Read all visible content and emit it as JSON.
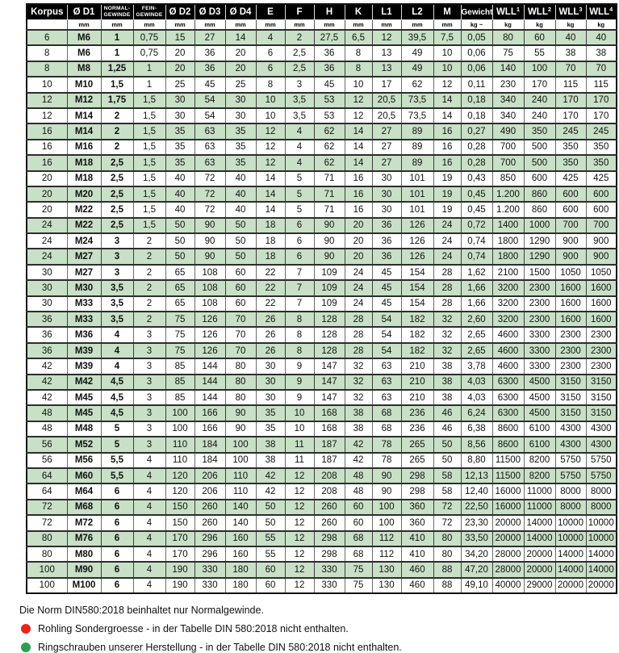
{
  "colors": {
    "row_highlight_green": "#c8e0c6",
    "header_bg": "#000000",
    "dot_red": "#e8231a",
    "dot_green": "#2e9e53"
  },
  "table": {
    "columns": [
      {
        "label": "Korpus",
        "unit": ""
      },
      {
        "label": "Ø D1",
        "unit": "mm"
      },
      {
        "lines": [
          "NORMAL-",
          "GEWINDE"
        ],
        "unit": "mm"
      },
      {
        "lines": [
          "FEIN-",
          "GEWINDE"
        ],
        "unit": "mm"
      },
      {
        "label": "Ø D2",
        "unit": "mm"
      },
      {
        "label": "Ø D3",
        "unit": "mm"
      },
      {
        "label": "Ø D4",
        "unit": "mm"
      },
      {
        "label": "E",
        "unit": "mm"
      },
      {
        "label": "F",
        "unit": "mm"
      },
      {
        "label": "H",
        "unit": "mm"
      },
      {
        "label": "K",
        "unit": "mm"
      },
      {
        "label": "L1",
        "unit": "mm"
      },
      {
        "label": "L2",
        "unit": "mm"
      },
      {
        "label": "M",
        "unit": "mm"
      },
      {
        "label": "Gewicht",
        "unit": "kg ~"
      },
      {
        "label": "WLL",
        "sup": "1",
        "unit": "kg"
      },
      {
        "label": "WLL",
        "sup": "2",
        "unit": "kg"
      },
      {
        "label": "WLL",
        "sup": "3",
        "unit": "kg"
      },
      {
        "label": "WLL",
        "sup": "4",
        "unit": "kg"
      }
    ],
    "rows": [
      {
        "dot": "red",
        "cells": [
          "6",
          "M6",
          "1",
          "0,75",
          "15",
          "27",
          "14",
          "4",
          "2",
          "27,5",
          "6,5",
          "12",
          "39,5",
          "7,5",
          "0,05",
          "80",
          "60",
          "40",
          "40"
        ]
      },
      {
        "cells": [
          "8",
          "M6",
          "1",
          "0,75",
          "20",
          "36",
          "20",
          "6",
          "2,5",
          "36",
          "8",
          "13",
          "49",
          "10",
          "0,06",
          "75",
          "55",
          "38",
          "38"
        ]
      },
      {
        "cells": [
          "8",
          "M8",
          "1,25",
          "1",
          "20",
          "36",
          "20",
          "6",
          "2,5",
          "36",
          "8",
          "13",
          "49",
          "10",
          "0,06",
          "140",
          "100",
          "70",
          "70"
        ]
      },
      {
        "cells": [
          "10",
          "M10",
          "1,5",
          "1",
          "25",
          "45",
          "25",
          "8",
          "3",
          "45",
          "10",
          "17",
          "62",
          "12",
          "0,11",
          "230",
          "170",
          "115",
          "115"
        ]
      },
      {
        "cells": [
          "12",
          "M12",
          "1,75",
          "1,5",
          "30",
          "54",
          "30",
          "10",
          "3,5",
          "53",
          "12",
          "20,5",
          "73,5",
          "14",
          "0,18",
          "340",
          "240",
          "170",
          "170"
        ]
      },
      {
        "dot": "green",
        "cells": [
          "12",
          "M14",
          "2",
          "1,5",
          "30",
          "54",
          "30",
          "10",
          "3,5",
          "53",
          "12",
          "20,5",
          "73,5",
          "14",
          "0,18",
          "340",
          "240",
          "170",
          "170"
        ]
      },
      {
        "cells": [
          "16",
          "M14",
          "2",
          "1,5",
          "35",
          "63",
          "35",
          "12",
          "4",
          "62",
          "14",
          "27",
          "89",
          "16",
          "0,27",
          "490",
          "350",
          "245",
          "245"
        ]
      },
      {
        "cells": [
          "16",
          "M16",
          "2",
          "1,5",
          "35",
          "63",
          "35",
          "12",
          "4",
          "62",
          "14",
          "27",
          "89",
          "16",
          "0,28",
          "700",
          "500",
          "350",
          "350"
        ]
      },
      {
        "dot": "green",
        "cells": [
          "16",
          "M18",
          "2,5",
          "1,5",
          "35",
          "63",
          "35",
          "12",
          "4",
          "62",
          "14",
          "27",
          "89",
          "16",
          "0,28",
          "700",
          "500",
          "350",
          "350"
        ]
      },
      {
        "cells": [
          "20",
          "M18",
          "2,5",
          "1,5",
          "40",
          "72",
          "40",
          "14",
          "5",
          "71",
          "16",
          "30",
          "101",
          "19",
          "0,43",
          "850",
          "600",
          "425",
          "425"
        ]
      },
      {
        "cells": [
          "20",
          "M20",
          "2,5",
          "1,5",
          "40",
          "72",
          "40",
          "14",
          "5",
          "71",
          "16",
          "30",
          "101",
          "19",
          "0,45",
          "1.200",
          "860",
          "600",
          "600"
        ]
      },
      {
        "dot": "green",
        "cells": [
          "20",
          "M22",
          "2,5",
          "1,5",
          "40",
          "72",
          "40",
          "14",
          "5",
          "71",
          "16",
          "30",
          "101",
          "19",
          "0,45",
          "1.200",
          "860",
          "600",
          "600"
        ]
      },
      {
        "cells": [
          "24",
          "M22",
          "2,5",
          "1,5",
          "50",
          "90",
          "50",
          "18",
          "6",
          "90",
          "20",
          "36",
          "126",
          "24",
          "0,72",
          "1400",
          "1000",
          "700",
          "700"
        ]
      },
      {
        "cells": [
          "24",
          "M24",
          "3",
          "2",
          "50",
          "90",
          "50",
          "18",
          "6",
          "90",
          "20",
          "36",
          "126",
          "24",
          "0,74",
          "1800",
          "1290",
          "900",
          "900"
        ]
      },
      {
        "dot": "green",
        "cells": [
          "24",
          "M27",
          "3",
          "2",
          "50",
          "90",
          "50",
          "18",
          "6",
          "90",
          "20",
          "36",
          "126",
          "24",
          "0,74",
          "1800",
          "1290",
          "900",
          "900"
        ]
      },
      {
        "cells": [
          "30",
          "M27",
          "3",
          "2",
          "65",
          "108",
          "60",
          "22",
          "7",
          "109",
          "24",
          "45",
          "154",
          "28",
          "1,62",
          "2100",
          "1500",
          "1050",
          "1050"
        ]
      },
      {
        "cells": [
          "30",
          "M30",
          "3,5",
          "2",
          "65",
          "108",
          "60",
          "22",
          "7",
          "109",
          "24",
          "45",
          "154",
          "28",
          "1,66",
          "3200",
          "2300",
          "1600",
          "1600"
        ]
      },
      {
        "dot": "green",
        "cells": [
          "30",
          "M33",
          "3,5",
          "2",
          "65",
          "108",
          "60",
          "22",
          "7",
          "109",
          "24",
          "45",
          "154",
          "28",
          "1,66",
          "3200",
          "2300",
          "1600",
          "1600"
        ]
      },
      {
        "cells": [
          "36",
          "M33",
          "3,5",
          "2",
          "75",
          "126",
          "70",
          "26",
          "8",
          "128",
          "28",
          "54",
          "182",
          "32",
          "2,60",
          "3200",
          "2300",
          "1600",
          "1600"
        ]
      },
      {
        "cells": [
          "36",
          "M36",
          "4",
          "3",
          "75",
          "126",
          "70",
          "26",
          "8",
          "128",
          "28",
          "54",
          "182",
          "32",
          "2,65",
          "4600",
          "3300",
          "2300",
          "2300"
        ]
      },
      {
        "dot": "green",
        "cells": [
          "36",
          "M39",
          "4",
          "3",
          "75",
          "126",
          "70",
          "26",
          "8",
          "128",
          "28",
          "54",
          "182",
          "32",
          "2,65",
          "4600",
          "3300",
          "2300",
          "2300"
        ]
      },
      {
        "cells": [
          "42",
          "M39",
          "4",
          "3",
          "85",
          "144",
          "80",
          "30",
          "9",
          "147",
          "32",
          "63",
          "210",
          "38",
          "3,78",
          "4600",
          "3300",
          "2300",
          "2300"
        ]
      },
      {
        "cells": [
          "42",
          "M42",
          "4,5",
          "3",
          "85",
          "144",
          "80",
          "30",
          "9",
          "147",
          "32",
          "63",
          "210",
          "38",
          "4,03",
          "6300",
          "4500",
          "3150",
          "3150"
        ]
      },
      {
        "dot": "green",
        "cells": [
          "42",
          "M45",
          "4,5",
          "3",
          "85",
          "144",
          "80",
          "30",
          "9",
          "147",
          "32",
          "63",
          "210",
          "38",
          "4,03",
          "6300",
          "4500",
          "3150",
          "3150"
        ]
      },
      {
        "cells": [
          "48",
          "M45",
          "4,5",
          "3",
          "100",
          "166",
          "90",
          "35",
          "10",
          "168",
          "38",
          "68",
          "236",
          "46",
          "6,24",
          "6300",
          "4500",
          "3150",
          "3150"
        ]
      },
      {
        "cells": [
          "48",
          "M48",
          "5",
          "3",
          "100",
          "166",
          "90",
          "35",
          "10",
          "168",
          "38",
          "68",
          "236",
          "46",
          "6,38",
          "8600",
          "6100",
          "4300",
          "4300"
        ]
      },
      {
        "cells": [
          "56",
          "M52",
          "5",
          "3",
          "110",
          "184",
          "100",
          "38",
          "11",
          "187",
          "42",
          "78",
          "265",
          "50",
          "8,56",
          "8600",
          "6100",
          "4300",
          "4300"
        ]
      },
      {
        "cells": [
          "56",
          "M56",
          "5,5",
          "4",
          "110",
          "184",
          "100",
          "38",
          "11",
          "187",
          "42",
          "78",
          "265",
          "50",
          "8,80",
          "11500",
          "8200",
          "5750",
          "5750"
        ]
      },
      {
        "cells": [
          "64",
          "M60",
          "5,5",
          "4",
          "120",
          "206",
          "110",
          "42",
          "12",
          "208",
          "48",
          "90",
          "298",
          "58",
          "12,13",
          "11500",
          "8200",
          "5750",
          "5750"
        ]
      },
      {
        "cells": [
          "64",
          "M64",
          "6",
          "4",
          "120",
          "206",
          "110",
          "42",
          "12",
          "208",
          "48",
          "90",
          "298",
          "58",
          "12,40",
          "16000",
          "11000",
          "8000",
          "8000"
        ]
      },
      {
        "dot": "green",
        "cells": [
          "72",
          "M68",
          "6",
          "4",
          "150",
          "260",
          "140",
          "50",
          "12",
          "260",
          "60",
          "100",
          "360",
          "72",
          "22,50",
          "16000",
          "11000",
          "8000",
          "8000"
        ]
      },
      {
        "cells": [
          "72",
          "M72",
          "6",
          "4",
          "150",
          "260",
          "140",
          "50",
          "12",
          "260",
          "60",
          "100",
          "360",
          "72",
          "23,30",
          "20000",
          "14000",
          "10000",
          "10000"
        ]
      },
      {
        "dot": "green",
        "cells": [
          "80",
          "M76",
          "6",
          "4",
          "170",
          "296",
          "160",
          "55",
          "12",
          "298",
          "68",
          "112",
          "410",
          "80",
          "33,50",
          "20000",
          "14000",
          "10000",
          "10000"
        ]
      },
      {
        "cells": [
          "80",
          "M80",
          "6",
          "4",
          "170",
          "296",
          "160",
          "55",
          "12",
          "298",
          "68",
          "112",
          "410",
          "80",
          "34,20",
          "28000",
          "20000",
          "14000",
          "14000"
        ]
      },
      {
        "dot": "green",
        "cells": [
          "100",
          "M90",
          "6",
          "4",
          "190",
          "330",
          "180",
          "60",
          "12",
          "330",
          "75",
          "130",
          "460",
          "88",
          "47,20",
          "28000",
          "20000",
          "14000",
          "14000"
        ]
      },
      {
        "cells": [
          "100",
          "M100",
          "6",
          "4",
          "190",
          "330",
          "180",
          "60",
          "12",
          "330",
          "75",
          "130",
          "460",
          "88",
          "49,10",
          "40000",
          "29000",
          "20000",
          "20000"
        ]
      }
    ]
  },
  "legend": {
    "norm_note": "Die Norm DIN580:2018 beinhaltet nur Normalgewinde.",
    "red_note": "Rohling Sondergroesse - in der Tabelle DIN 580:2018 nicht enthalten.",
    "green_note": "Ringschrauben unserer Herstellung - in der Tabelle DIN 580:2018 nicht enthalten."
  }
}
